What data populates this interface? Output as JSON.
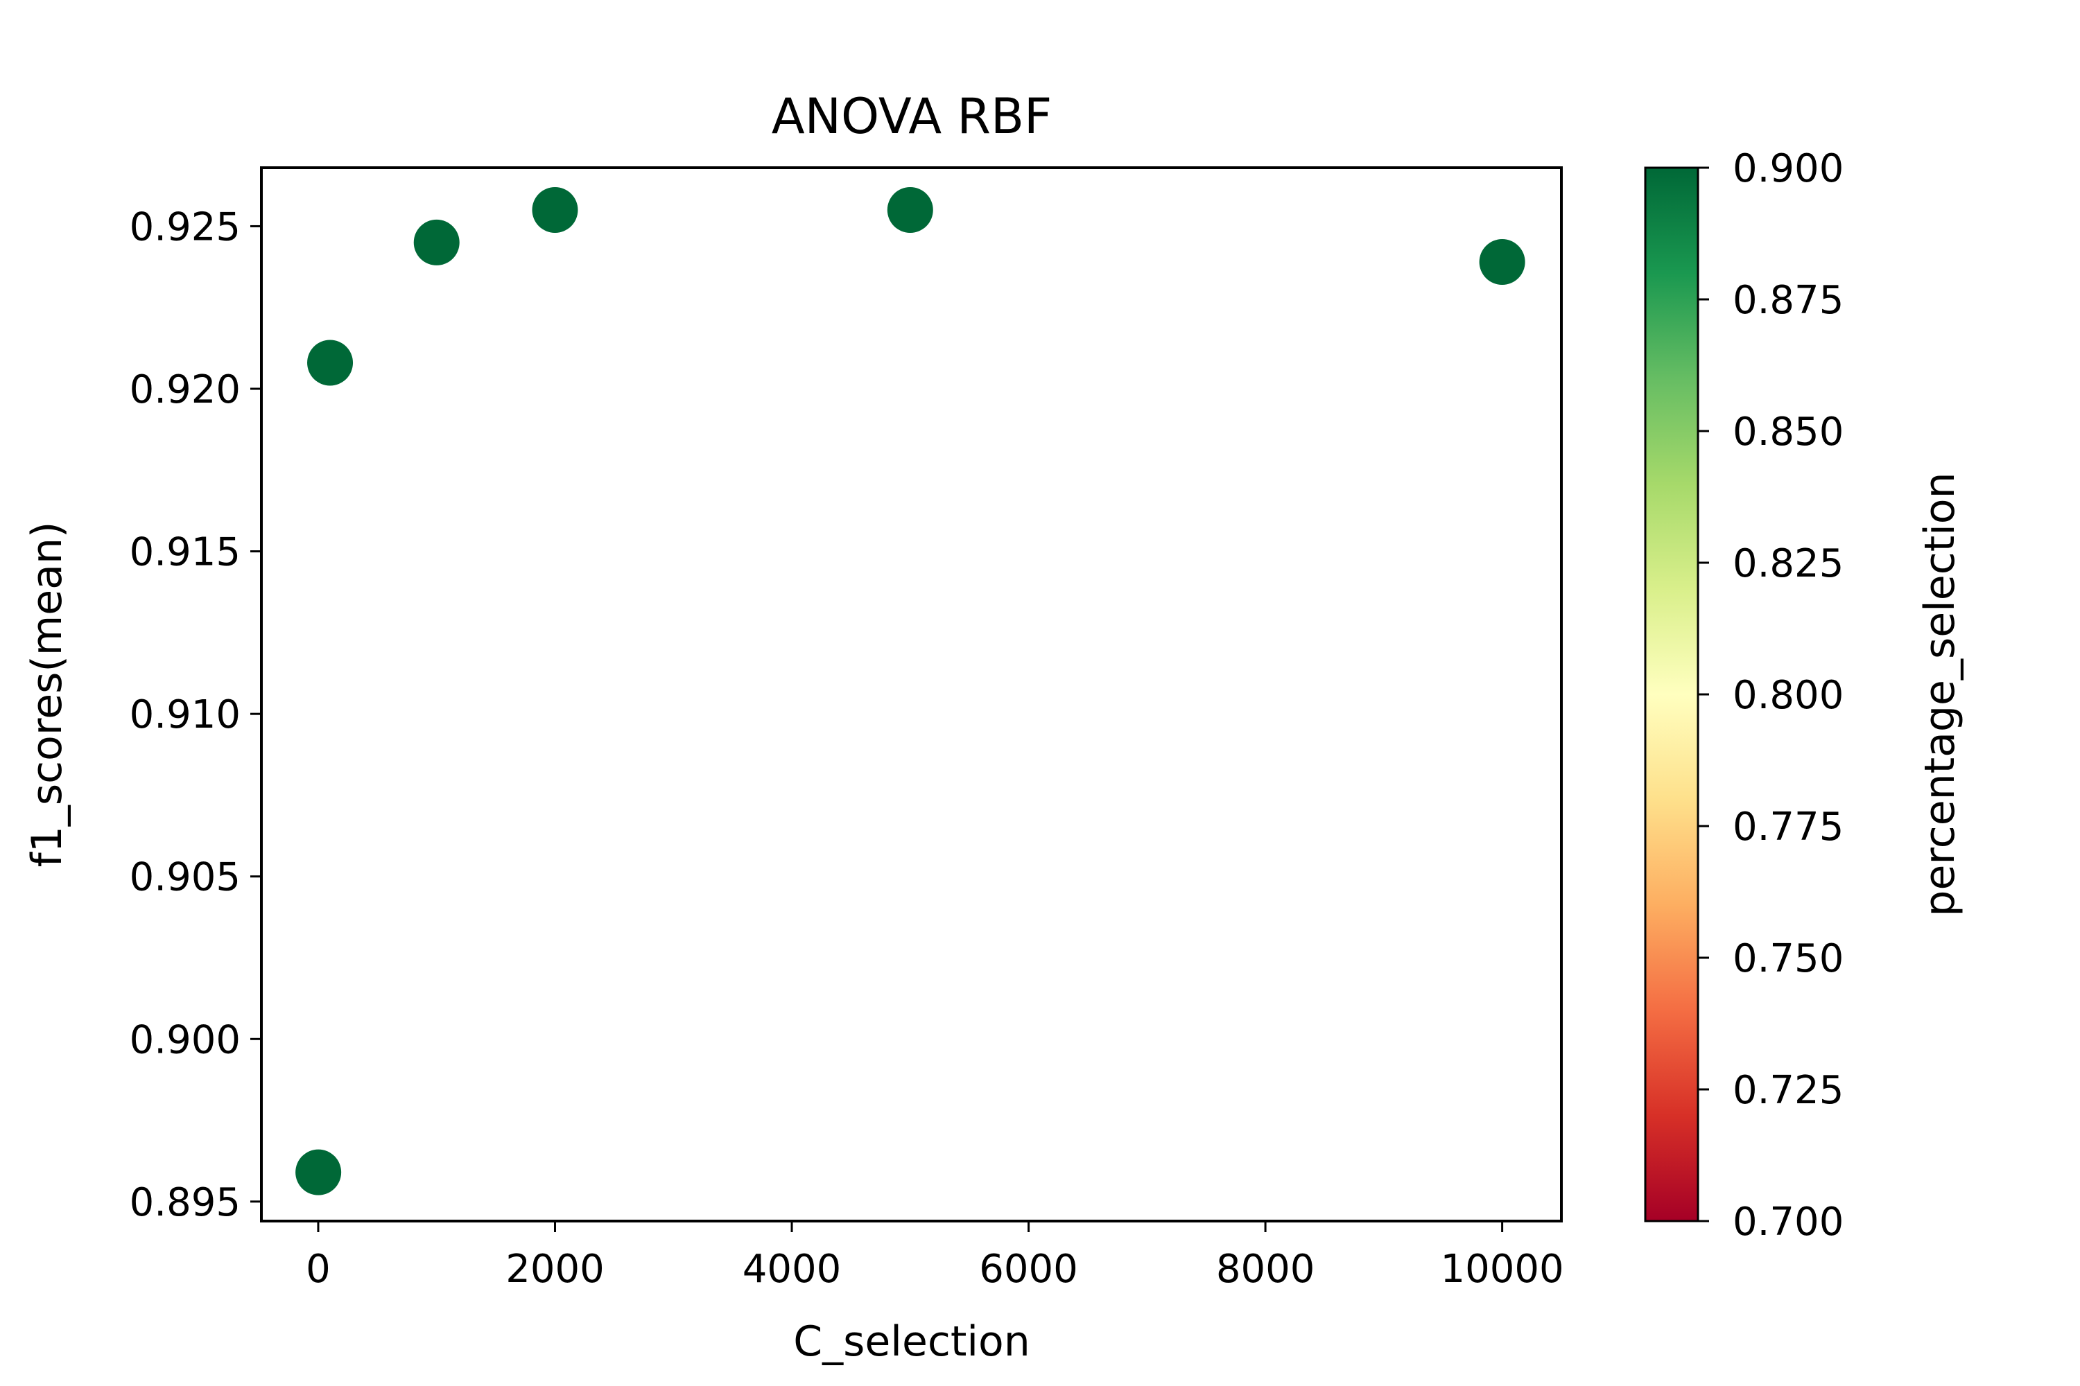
{
  "chart_data": {
    "type": "scatter",
    "title": "ANOVA RBF",
    "xlabel": "C_selection",
    "ylabel": "f1_scores(mean)",
    "xlim": [
      -480,
      10500
    ],
    "ylim": [
      0.8944,
      0.9268
    ],
    "xticks": [
      0,
      2000,
      4000,
      6000,
      8000,
      10000
    ],
    "xtick_labels": [
      "0",
      "2000",
      "4000",
      "6000",
      "8000",
      "10000"
    ],
    "yticks": [
      0.895,
      0.9,
      0.905,
      0.91,
      0.915,
      0.92,
      0.925
    ],
    "ytick_labels": [
      "0.895",
      "0.900",
      "0.905",
      "0.910",
      "0.915",
      "0.920",
      "0.925"
    ],
    "points": [
      {
        "x": 1,
        "y": 0.8959,
        "c": 0.9
      },
      {
        "x": 100,
        "y": 0.9208,
        "c": 0.9
      },
      {
        "x": 1000,
        "y": 0.9245,
        "c": 0.9
      },
      {
        "x": 2000,
        "y": 0.9255,
        "c": 0.9
      },
      {
        "x": 5000,
        "y": 0.9255,
        "c": 0.9
      },
      {
        "x": 10000,
        "y": 0.9239,
        "c": 0.9
      }
    ],
    "colorbar": {
      "label": "percentage_selection",
      "colormap": "RdYlGn",
      "range": [
        0.7,
        0.9
      ],
      "ticks": [
        0.7,
        0.725,
        0.75,
        0.775,
        0.8,
        0.825,
        0.85,
        0.875,
        0.9
      ],
      "tick_labels": [
        "0.700",
        "0.725",
        "0.750",
        "0.775",
        "0.800",
        "0.825",
        "0.850",
        "0.875",
        "0.900"
      ],
      "stops": [
        "#a50026",
        "#d73027",
        "#f46d43",
        "#fdae61",
        "#fee08b",
        "#ffffbf",
        "#d9ef8b",
        "#a6d96a",
        "#66bd63",
        "#1a9850",
        "#006837"
      ]
    }
  }
}
